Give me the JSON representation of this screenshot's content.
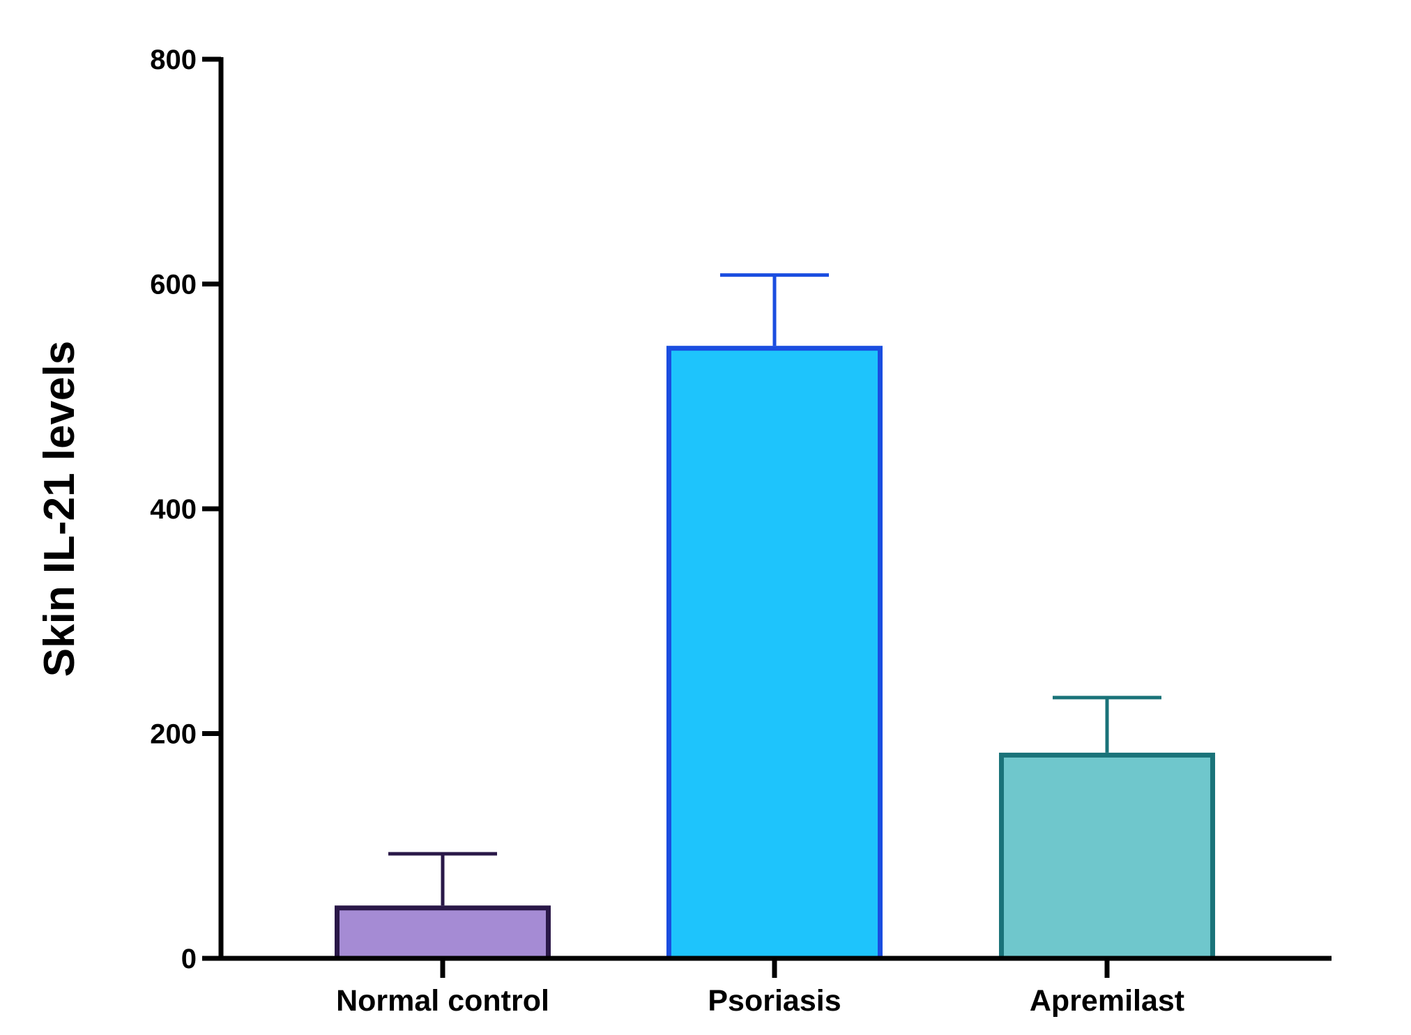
{
  "chart_data": {
    "type": "bar",
    "title": "",
    "xlabel": "",
    "ylabel": "Skin IL-21 levels",
    "ylim": [
      0,
      800
    ],
    "yticks": [
      0,
      200,
      400,
      600,
      800
    ],
    "categories": [
      "Normal control",
      "Psoriasis",
      "Apremilast"
    ],
    "values": [
      47,
      545,
      183
    ],
    "error_upper": [
      93,
      608,
      232
    ],
    "grid": false,
    "legend": "none",
    "styles": [
      {
        "fill": "#a58bd4",
        "stroke": "#2a1848"
      },
      {
        "fill": "#1ec4fc",
        "stroke": "#1a4de0"
      },
      {
        "fill": "#6fc7cc",
        "stroke": "#1a7379"
      }
    ]
  }
}
